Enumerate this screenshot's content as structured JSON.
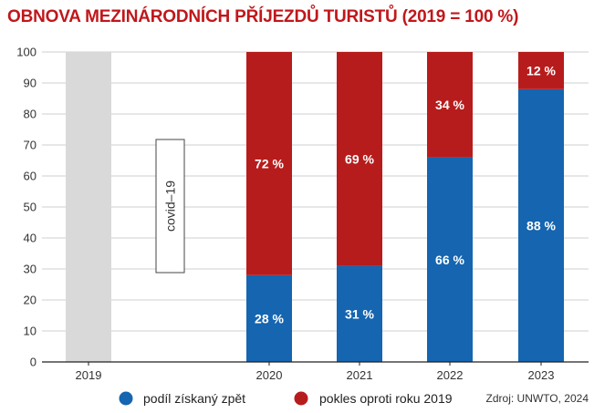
{
  "chart_data": {
    "type": "bar",
    "title": "OBNOVA MEZINÁRODNÍCH PŘÍJEZDŮ TURISTŮ (2019 = 100 %)",
    "categories": [
      "2019",
      "2020",
      "2021",
      "2022",
      "2023"
    ],
    "series": [
      {
        "name": "podíl získaný zpět",
        "values": [
          null,
          28,
          31,
          66,
          88
        ],
        "labels": [
          "",
          "28 %",
          "31 %",
          "66 %",
          "88 %"
        ],
        "color": "#1565b0"
      },
      {
        "name": "pokles oproti roku 2019",
        "values": [
          null,
          72,
          69,
          34,
          12
        ],
        "labels": [
          "",
          "72 %",
          "69 %",
          "34 %",
          "12 %"
        ],
        "color": "#b71c1c"
      }
    ],
    "baseline": {
      "category": "2019",
      "value": 100,
      "color": "#d9d9d9"
    },
    "stacked": true,
    "ylim": [
      0,
      100
    ],
    "yticks": [
      0,
      10,
      20,
      30,
      40,
      50,
      60,
      70,
      80,
      90,
      100
    ],
    "grid": true,
    "legend_position": "bottom",
    "annotation": "covid–19",
    "source": "Zdroj: UNWTO, 2024",
    "colors": {
      "title": "#c0171b",
      "grid": "#cfcfcf",
      "background": "#ffffff"
    }
  }
}
